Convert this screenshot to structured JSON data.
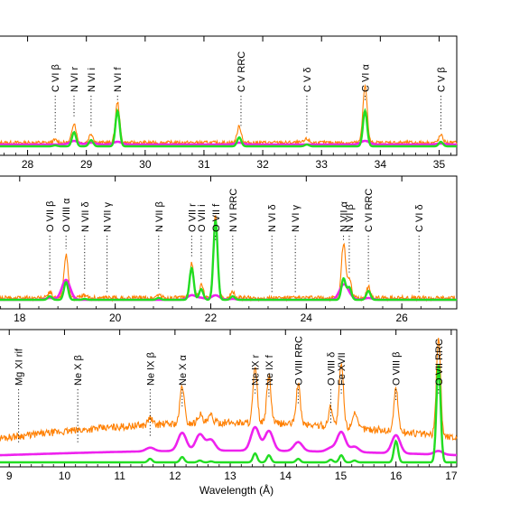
{
  "colors": {
    "orange": "#ff7f00",
    "green": "#22dd22",
    "magenta": "#ee22ee"
  },
  "chart_data": {
    "type": "line",
    "xlabel": "Wavelength (Å)",
    "grid": false,
    "legend": "none",
    "panels": [
      {
        "xlim": [
          27.5,
          35.3
        ],
        "ticks": [
          28,
          29,
          30,
          31,
          32,
          33,
          34,
          35
        ],
        "lines": [
          {
            "label": "C VI β",
            "x": 28.47
          },
          {
            "label": "N VI r",
            "x": 28.79
          },
          {
            "label": "N VI i",
            "x": 29.08
          },
          {
            "label": "N VI f",
            "x": 29.53
          },
          {
            "label": "C V RRC",
            "x": 31.63
          },
          {
            "label": "C V δ",
            "x": 32.75
          },
          {
            "label": "C VI α",
            "x": 33.74
          },
          {
            "label": "C V β",
            "x": 35.03
          }
        ],
        "peaks": [
          {
            "x": 28.47,
            "o": 3,
            "g": 1,
            "m": 0
          },
          {
            "x": 28.79,
            "o": 22,
            "g": 16,
            "m": 4
          },
          {
            "x": 29.08,
            "o": 10,
            "g": 7,
            "m": 2
          },
          {
            "x": 29.53,
            "o": 45,
            "g": 40,
            "m": 3
          },
          {
            "x": 31.6,
            "o": 18,
            "g": 10,
            "m": 2
          },
          {
            "x": 32.75,
            "o": 4,
            "g": 2,
            "m": 0
          },
          {
            "x": 33.74,
            "o": 64,
            "g": 40,
            "m": 4
          },
          {
            "x": 35.03,
            "o": 8,
            "g": 5,
            "m": 1
          }
        ]
      },
      {
        "xlim": [
          17.55,
          27.15
        ],
        "ticks": [
          18,
          20,
          22,
          24,
          26
        ],
        "lines": [
          {
            "label": "O VII β",
            "x": 18.63
          },
          {
            "label": "O VIII α",
            "x": 18.97
          },
          {
            "label": "N VII δ",
            "x": 19.36
          },
          {
            "label": "N VII γ",
            "x": 19.83
          },
          {
            "label": "N VII β",
            "x": 20.91
          },
          {
            "label": "O VII r",
            "x": 21.6
          },
          {
            "label": "O VII i",
            "x": 21.8
          },
          {
            "label": "O VII f",
            "x": 22.1
          },
          {
            "label": "N VI RRC",
            "x": 22.46
          },
          {
            "label": "N VI δ",
            "x": 23.28
          },
          {
            "label": "N VI γ",
            "x": 23.77
          },
          {
            "label": "N VII α",
            "x": 24.78
          },
          {
            "label": "N VI β",
            "x": 24.9
          },
          {
            "label": "C VI RRC",
            "x": 25.3
          },
          {
            "label": "C VI δ",
            "x": 26.36
          }
        ],
        "peaks": [
          {
            "x": 18.63,
            "o": 6,
            "g": 4,
            "m": 2
          },
          {
            "x": 18.97,
            "o": 48,
            "g": 20,
            "m": 22
          },
          {
            "x": 19.36,
            "o": 3,
            "g": 1,
            "m": 0
          },
          {
            "x": 20.91,
            "o": 4,
            "g": 2,
            "m": 0
          },
          {
            "x": 21.6,
            "o": 38,
            "g": 36,
            "m": 5
          },
          {
            "x": 21.8,
            "o": 14,
            "g": 12,
            "m": 2
          },
          {
            "x": 22.1,
            "o": 92,
            "g": 90,
            "m": 5
          },
          {
            "x": 22.46,
            "o": 6,
            "g": 4,
            "m": 1
          },
          {
            "x": 24.78,
            "o": 60,
            "g": 24,
            "m": 16
          },
          {
            "x": 24.9,
            "o": 20,
            "g": 14,
            "m": 3
          },
          {
            "x": 25.3,
            "o": 12,
            "g": 10,
            "m": 2
          }
        ]
      },
      {
        "xlim": [
          8.8,
          17.1
        ],
        "ticks": [
          9,
          10,
          11,
          12,
          13,
          14,
          15,
          16,
          17
        ],
        "lines": [
          {
            "label": "Mg XI rif",
            "x": 9.17
          },
          {
            "label": "Ne X β",
            "x": 10.24
          },
          {
            "label": "Ne IX β",
            "x": 11.55
          },
          {
            "label": "Ne X α",
            "x": 12.13
          },
          {
            "label": "Ne IX r",
            "x": 13.45
          },
          {
            "label": "Ne IX f",
            "x": 13.7
          },
          {
            "label": "O VIII RRC",
            "x": 14.23
          },
          {
            "label": "O VIII δ",
            "x": 14.82
          },
          {
            "label": "Fe XVII",
            "x": 15.01
          },
          {
            "label": "O VIII β",
            "x": 16.0
          },
          {
            "label": "O VII RRC",
            "x": 16.77
          }
        ],
        "peaks": [
          {
            "x": 11.55,
            "o": 8,
            "g": 4,
            "m": 4
          },
          {
            "x": 12.13,
            "o": 42,
            "g": 6,
            "m": 20
          },
          {
            "x": 12.45,
            "o": 10,
            "g": 2,
            "m": 18
          },
          {
            "x": 12.65,
            "o": 8,
            "g": 1,
            "m": 12
          },
          {
            "x": 13.45,
            "o": 60,
            "g": 10,
            "m": 26
          },
          {
            "x": 13.7,
            "o": 52,
            "g": 8,
            "m": 22
          },
          {
            "x": 14.23,
            "o": 44,
            "g": 4,
            "m": 10
          },
          {
            "x": 14.82,
            "o": 22,
            "g": 3,
            "m": 4
          },
          {
            "x": 15.01,
            "o": 70,
            "g": 8,
            "m": 22
          },
          {
            "x": 15.25,
            "o": 18,
            "g": 2,
            "m": 6
          },
          {
            "x": 16.0,
            "o": 48,
            "g": 24,
            "m": 20
          },
          {
            "x": 16.77,
            "o": 110,
            "g": 110,
            "m": 4
          }
        ]
      }
    ]
  }
}
